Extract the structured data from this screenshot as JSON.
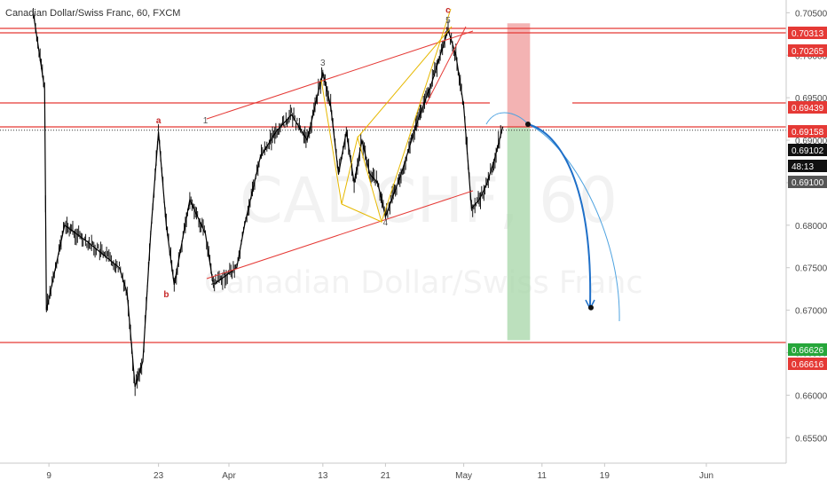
{
  "chart_data": {
    "type": "line",
    "title": "Canadian Dollar/Swiss Franc, 60, FXCM",
    "watermark": {
      "symbol": "CADCHF, 60",
      "name": "Canadian Dollar/Swiss Franc"
    },
    "ylim": [
      0.652,
      0.7065
    ],
    "y_ticks": [
      "0.70500",
      "0.70000",
      "0.69500",
      "0.69000",
      "0.68500",
      "0.68000",
      "0.67500",
      "0.67000",
      "0.66500",
      "0.66000",
      "0.65500"
    ],
    "y_tick_values": [
      0.705,
      0.7,
      0.695,
      0.69,
      0.685,
      0.68,
      0.675,
      0.67,
      0.665,
      0.66,
      0.655
    ],
    "x_ticks": [
      "9",
      "23",
      "Apr",
      "13",
      "21",
      "May",
      "11",
      "19",
      "Jun"
    ],
    "x_tick_dates": [
      "2019-03-09",
      "2019-03-23",
      "2019-04-01",
      "2019-04-13",
      "2019-04-21",
      "2019-05-01",
      "2019-05-11",
      "2019-05-19",
      "2019-06-01"
    ],
    "price_series": {
      "name": "CADCHF",
      "x": [
        "2019-03-07",
        "2019-03-08",
        "2019-03-08",
        "2019-03-11",
        "2019-03-14",
        "2019-03-18",
        "2019-03-19",
        "2019-03-20",
        "2019-03-21",
        "2019-03-22",
        "2019-03-23",
        "2019-03-24",
        "2019-03-25",
        "2019-03-27",
        "2019-03-29",
        "2019-03-30",
        "2019-04-02",
        "2019-04-03",
        "2019-04-05",
        "2019-04-07",
        "2019-04-09",
        "2019-04-11",
        "2019-04-13",
        "2019-04-14",
        "2019-04-15",
        "2019-04-16",
        "2019-04-17",
        "2019-04-18",
        "2019-04-19",
        "2019-04-20",
        "2019-04-21",
        "2019-04-23",
        "2019-04-25",
        "2019-04-27",
        "2019-04-29",
        "2019-04-30",
        "2019-05-01",
        "2019-05-02",
        "2019-05-03",
        "2019-05-04",
        "2019-05-05",
        "2019-05-06"
      ],
      "y": [
        0.705,
        0.696,
        0.67,
        0.68,
        0.678,
        0.675,
        0.672,
        0.661,
        0.664,
        0.679,
        0.691,
        0.68,
        0.673,
        0.683,
        0.679,
        0.673,
        0.675,
        0.68,
        0.688,
        0.691,
        0.693,
        0.69,
        0.698,
        0.694,
        0.686,
        0.691,
        0.685,
        0.69,
        0.686,
        0.685,
        0.681,
        0.686,
        0.692,
        0.697,
        0.703,
        0.7,
        0.694,
        0.682,
        0.683,
        0.685,
        0.688,
        0.6916
      ]
    },
    "horizontal_levels": [
      {
        "price": 0.70313,
        "label": "0.70313",
        "color": "#e53935"
      },
      {
        "price": 0.70265,
        "label": "0.70265",
        "color": "#e53935"
      },
      {
        "price": 0.69439,
        "label": "0.69439",
        "color": "#e53935"
      },
      {
        "price": 0.69158,
        "label": "0.69158",
        "color": "#e53935"
      },
      {
        "price": 0.66626,
        "label": "0.66626",
        "color": "#26a63a"
      },
      {
        "price": 0.66616,
        "label": "0.66616",
        "color": "#e53935"
      }
    ],
    "price_tags": [
      {
        "label": "0.69102",
        "color": "#111111"
      },
      {
        "label": "48:13",
        "color": "#111111"
      },
      {
        "label": "0.69100",
        "color": "#555555"
      }
    ],
    "wave_labels": [
      {
        "text": "a",
        "color": "#c62828",
        "x": "2019-03-23",
        "y": 0.692
      },
      {
        "text": "b",
        "color": "#c62828",
        "x": "2019-03-24",
        "y": 0.6715
      },
      {
        "text": "c",
        "color": "#c62828",
        "x": "2019-04-29",
        "y": 0.705
      },
      {
        "text": "1",
        "color": "#555555",
        "x": "2019-03-29",
        "y": 0.692
      },
      {
        "text": "2",
        "color": "#555555",
        "x": "2019-03-30",
        "y": 0.673
      },
      {
        "text": "3",
        "color": "#555555",
        "x": "2019-04-13",
        "y": 0.6988
      },
      {
        "text": "4",
        "color": "#555555",
        "x": "2019-04-21",
        "y": 0.68
      },
      {
        "text": "5",
        "color": "#555555",
        "x": "2019-04-29",
        "y": 0.7038
      }
    ],
    "position": {
      "entry": 0.69158,
      "stop": 0.70313,
      "target": 0.66626,
      "entry_date": "2019-05-06",
      "end_date": "2019-05-08"
    },
    "projection_point": 0.6703,
    "colors": {
      "background": "#ffffff",
      "candles": "#000000",
      "level_line": "#e53935",
      "target_zone": "#a5d6a7",
      "stop_zone": "#ef9a9a",
      "channel": "#e53935",
      "zigzag": "#e6b800",
      "projection": "#1e6fc8",
      "projection_light": "#4fa3e0"
    }
  }
}
